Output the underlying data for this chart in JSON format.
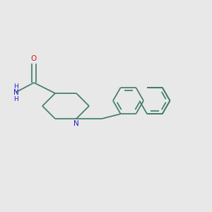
{
  "background_color": "#e8e8e8",
  "bond_color": "#3d7a6a",
  "n_color": "#2020cc",
  "o_color": "#cc2020",
  "line_width": 1.2,
  "figsize": [
    3.0,
    3.0
  ],
  "dpi": 100,
  "xlim": [
    0,
    10
  ],
  "ylim": [
    0,
    10
  ]
}
